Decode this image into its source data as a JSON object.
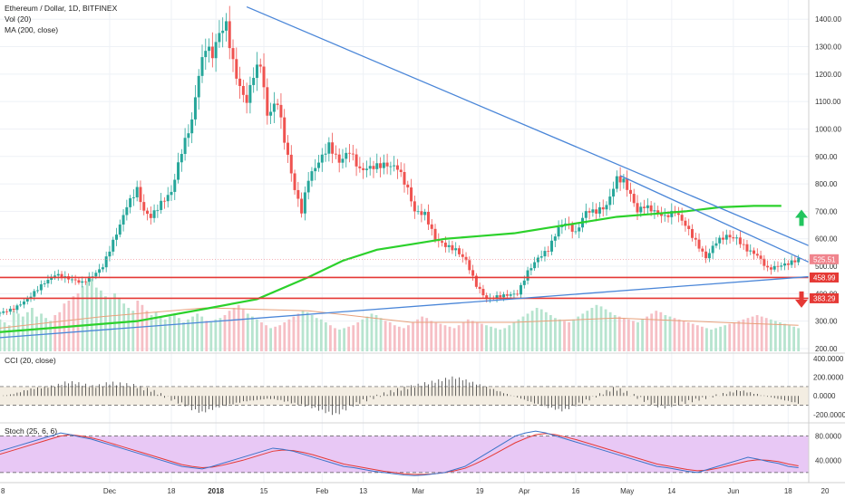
{
  "chart_data": {
    "type": "candlestick",
    "title": "Ethereum / Dollar, 1D, BITFINEX",
    "indicators": {
      "volume_label": "Vol (20)",
      "ma_label": "MA (200, close)",
      "cci_label": "CCI (20, close)",
      "stoch_label": "Stoch (25, 6, 6)"
    },
    "x_ticks": [
      {
        "label": "Dec",
        "t": 32
      },
      {
        "label": "18",
        "t": 50
      },
      {
        "label": "2018",
        "t": 63
      },
      {
        "label": "15",
        "t": 77
      },
      {
        "label": "Feb",
        "t": 94
      },
      {
        "label": "13",
        "t": 106
      },
      {
        "label": "Mar",
        "t": 122
      },
      {
        "label": "19",
        "t": 140
      },
      {
        "label": "Apr",
        "t": 153
      },
      {
        "label": "16",
        "t": 168
      },
      {
        "label": "May",
        "t": 183
      },
      {
        "label": "14",
        "t": 196
      },
      {
        "label": "Jun",
        "t": 214
      },
      {
        "label": "18",
        "t": 230
      }
    ],
    "x_first_label": "8",
    "x_last_label": "20",
    "y_main": {
      "min": 190,
      "max": 1470,
      "ticks": [
        "200.00",
        "300.00",
        "400.00",
        "500.00",
        "600.00",
        "700.00",
        "800.00",
        "900.00",
        "1000.00",
        "1100.00",
        "1200.00",
        "1300.00",
        "1400.00"
      ]
    },
    "y_cci": {
      "min": -280,
      "max": 450,
      "ticks": [
        "400.0000",
        "200.0000",
        "0.0000",
        "-200.0000"
      ]
    },
    "y_stoch": {
      "min": 5,
      "max": 100,
      "ticks": [
        "80.0000",
        "40.0000"
      ]
    },
    "price_markers": [
      {
        "value": 525.51,
        "label": "525.51",
        "color": "#f0848d"
      },
      {
        "value": 458.99,
        "label": "458.99",
        "color": "#e53935"
      },
      {
        "value": 383.29,
        "label": "383.29",
        "color": "#e53935"
      }
    ],
    "horizontal_lines": [
      {
        "value": 458.99,
        "color": "#e53935"
      },
      {
        "value": 383.29,
        "color": "#e53935"
      }
    ],
    "trendlines": [
      {
        "t1": 72,
        "v1": 1445,
        "t2": 236,
        "v2": 575,
        "color": "#4a86d8"
      },
      {
        "t1": 181,
        "v1": 830,
        "t2": 236,
        "v2": 515,
        "color": "#4a86d8"
      },
      {
        "t1": 0,
        "v1": 240,
        "t2": 236,
        "v2": 462,
        "color": "#4a86d8"
      }
    ],
    "signals": [
      {
        "type": "arrow-up",
        "color": "#22c55e"
      },
      {
        "type": "arrow-down",
        "color": "#e53935"
      }
    ],
    "close_path": [
      [
        0,
        330
      ],
      [
        4,
        345
      ],
      [
        8,
        380
      ],
      [
        12,
        430
      ],
      [
        16,
        470
      ],
      [
        20,
        455
      ],
      [
        24,
        440
      ],
      [
        28,
        475
      ],
      [
        30,
        500
      ],
      [
        32,
        560
      ],
      [
        35,
        650
      ],
      [
        37,
        720
      ],
      [
        40,
        780
      ],
      [
        42,
        700
      ],
      [
        44,
        680
      ],
      [
        47,
        730
      ],
      [
        50,
        770
      ],
      [
        53,
        920
      ],
      [
        56,
        1030
      ],
      [
        58,
        1200
      ],
      [
        60,
        1300
      ],
      [
        62,
        1270
      ],
      [
        64,
        1350
      ],
      [
        66,
        1380
      ],
      [
        68,
        1240
      ],
      [
        70,
        1150
      ],
      [
        72,
        1100
      ],
      [
        74,
        1200
      ],
      [
        76,
        1240
      ],
      [
        78,
        1050
      ],
      [
        81,
        1100
      ],
      [
        83,
        960
      ],
      [
        86,
        780
      ],
      [
        88,
        700
      ],
      [
        90,
        820
      ],
      [
        93,
        880
      ],
      [
        96,
        940
      ],
      [
        99,
        880
      ],
      [
        102,
        920
      ],
      [
        105,
        850
      ],
      [
        108,
        860
      ],
      [
        112,
        870
      ],
      [
        116,
        860
      ],
      [
        119,
        780
      ],
      [
        121,
        700
      ],
      [
        124,
        690
      ],
      [
        127,
        600
      ],
      [
        130,
        575
      ],
      [
        133,
        560
      ],
      [
        136,
        520
      ],
      [
        139,
        430
      ],
      [
        142,
        380
      ],
      [
        145,
        390
      ],
      [
        148,
        395
      ],
      [
        151,
        400
      ],
      [
        154,
        480
      ],
      [
        157,
        530
      ],
      [
        160,
        560
      ],
      [
        163,
        640
      ],
      [
        165,
        660
      ],
      [
        168,
        620
      ],
      [
        171,
        700
      ],
      [
        174,
        700
      ],
      [
        177,
        720
      ],
      [
        180,
        820
      ],
      [
        182,
        810
      ],
      [
        184,
        760
      ],
      [
        186,
        700
      ],
      [
        188,
        720
      ],
      [
        191,
        700
      ],
      [
        194,
        680
      ],
      [
        197,
        700
      ],
      [
        200,
        650
      ],
      [
        203,
        590
      ],
      [
        206,
        530
      ],
      [
        209,
        590
      ],
      [
        212,
        610
      ],
      [
        215,
        600
      ],
      [
        218,
        560
      ],
      [
        221,
        540
      ],
      [
        224,
        490
      ],
      [
        227,
        500
      ],
      [
        230,
        510
      ],
      [
        233,
        525.51
      ]
    ],
    "volume": [
      22,
      20,
      18,
      28,
      26,
      24,
      27,
      30,
      24,
      26,
      23,
      21,
      25,
      27,
      33,
      35,
      38,
      40,
      45,
      48,
      50,
      44,
      42,
      38,
      36,
      40,
      37,
      33,
      30,
      28,
      35,
      32,
      28,
      25,
      27,
      24,
      22,
      24,
      26,
      23,
      20,
      22,
      24,
      26,
      24,
      21,
      20,
      22,
      23,
      25,
      28,
      30,
      32,
      29,
      26,
      24,
      22,
      20,
      18,
      16,
      17,
      18,
      20,
      22,
      24,
      26,
      28,
      27,
      25,
      23,
      22,
      20,
      18,
      16,
      15,
      16,
      17,
      18,
      20,
      22,
      24,
      26,
      25,
      23,
      21,
      20,
      18,
      17,
      16,
      18,
      20,
      22,
      24,
      23,
      21,
      20,
      19,
      18,
      17,
      16,
      18,
      20,
      22,
      21,
      20,
      19,
      18,
      17,
      16,
      15,
      16,
      18,
      20,
      22,
      24,
      26,
      28,
      30,
      29,
      27,
      25,
      23,
      22,
      21,
      20,
      22,
      24,
      26,
      28,
      30,
      32,
      31,
      29,
      27,
      25,
      24,
      23,
      22,
      21,
      20,
      22,
      24,
      26,
      28,
      27,
      25,
      24,
      23,
      22,
      21,
      20,
      19,
      18,
      17,
      16,
      15,
      16,
      17,
      18,
      19,
      20,
      21,
      22,
      23,
      24,
      25,
      24,
      23,
      22,
      21,
      20,
      19,
      18,
      17,
      16
    ],
    "ma200": [
      [
        0,
        260
      ],
      [
        20,
        280
      ],
      [
        40,
        300
      ],
      [
        60,
        345
      ],
      [
        75,
        380
      ],
      [
        90,
        460
      ],
      [
        100,
        520
      ],
      [
        110,
        560
      ],
      [
        120,
        580
      ],
      [
        130,
        600
      ],
      [
        140,
        610
      ],
      [
        150,
        620
      ],
      [
        160,
        640
      ],
      [
        170,
        660
      ],
      [
        180,
        680
      ],
      [
        190,
        690
      ],
      [
        200,
        700
      ],
      [
        210,
        715
      ],
      [
        220,
        720
      ],
      [
        228,
        720
      ]
    ],
    "vol_ma": [
      [
        0,
        16
      ],
      [
        30,
        24
      ],
      [
        60,
        30
      ],
      [
        90,
        28
      ],
      [
        120,
        20
      ],
      [
        150,
        20
      ],
      [
        180,
        23
      ],
      [
        210,
        20
      ],
      [
        233,
        18
      ]
    ],
    "cci": [
      0,
      10,
      30,
      60,
      80,
      90,
      100,
      120,
      150,
      140,
      120,
      100,
      110,
      140,
      130,
      120,
      110,
      80,
      60,
      20,
      -20,
      -60,
      -100,
      -150,
      -180,
      -150,
      -120,
      -100,
      -80,
      -60,
      -50,
      -40,
      -30,
      -40,
      -60,
      -80,
      -100,
      -120,
      -150,
      -180,
      -200,
      -150,
      -100,
      -60,
      -30,
      0,
      30,
      60,
      80,
      100,
      120,
      140,
      160,
      180,
      200,
      180,
      150,
      120,
      90,
      60,
      30,
      0,
      -30,
      -60,
      -90,
      -120,
      -140,
      -160,
      -120,
      -80,
      -40,
      0,
      40,
      80,
      60,
      20,
      -20,
      -60,
      -100,
      -120,
      -100,
      -80,
      -60,
      -40,
      -20,
      0,
      20,
      40,
      60,
      40,
      20,
      0,
      -20,
      -40,
      -60,
      -80
    ],
    "stoch_k": [
      55,
      60,
      65,
      70,
      75,
      80,
      85,
      82,
      78,
      75,
      70,
      65,
      60,
      55,
      50,
      45,
      40,
      35,
      30,
      28,
      26,
      30,
      35,
      40,
      45,
      50,
      55,
      60,
      58,
      55,
      50,
      45,
      40,
      35,
      30,
      28,
      25,
      22,
      20,
      18,
      16,
      15,
      16,
      18,
      20,
      25,
      30,
      40,
      50,
      60,
      70,
      80,
      85,
      88,
      85,
      80,
      75,
      70,
      65,
      60,
      55,
      50,
      45,
      40,
      35,
      30,
      28,
      25,
      22,
      20,
      25,
      30,
      35,
      40,
      45,
      42,
      38,
      35,
      30,
      28
    ],
    "stoch_d": [
      50,
      55,
      60,
      65,
      70,
      75,
      80,
      82,
      80,
      77,
      73,
      68,
      63,
      58,
      53,
      48,
      43,
      38,
      33,
      30,
      28,
      29,
      32,
      36,
      40,
      45,
      50,
      55,
      57,
      56,
      53,
      49,
      44,
      39,
      34,
      31,
      28,
      25,
      22,
      20,
      18,
      17,
      17,
      18,
      20,
      23,
      27,
      34,
      42,
      51,
      60,
      69,
      76,
      82,
      84,
      82,
      78,
      74,
      69,
      64,
      59,
      54,
      49,
      44,
      39,
      34,
      31,
      28,
      25,
      23,
      24,
      27,
      31,
      35,
      39,
      41,
      40,
      38,
      34,
      31
    ]
  }
}
